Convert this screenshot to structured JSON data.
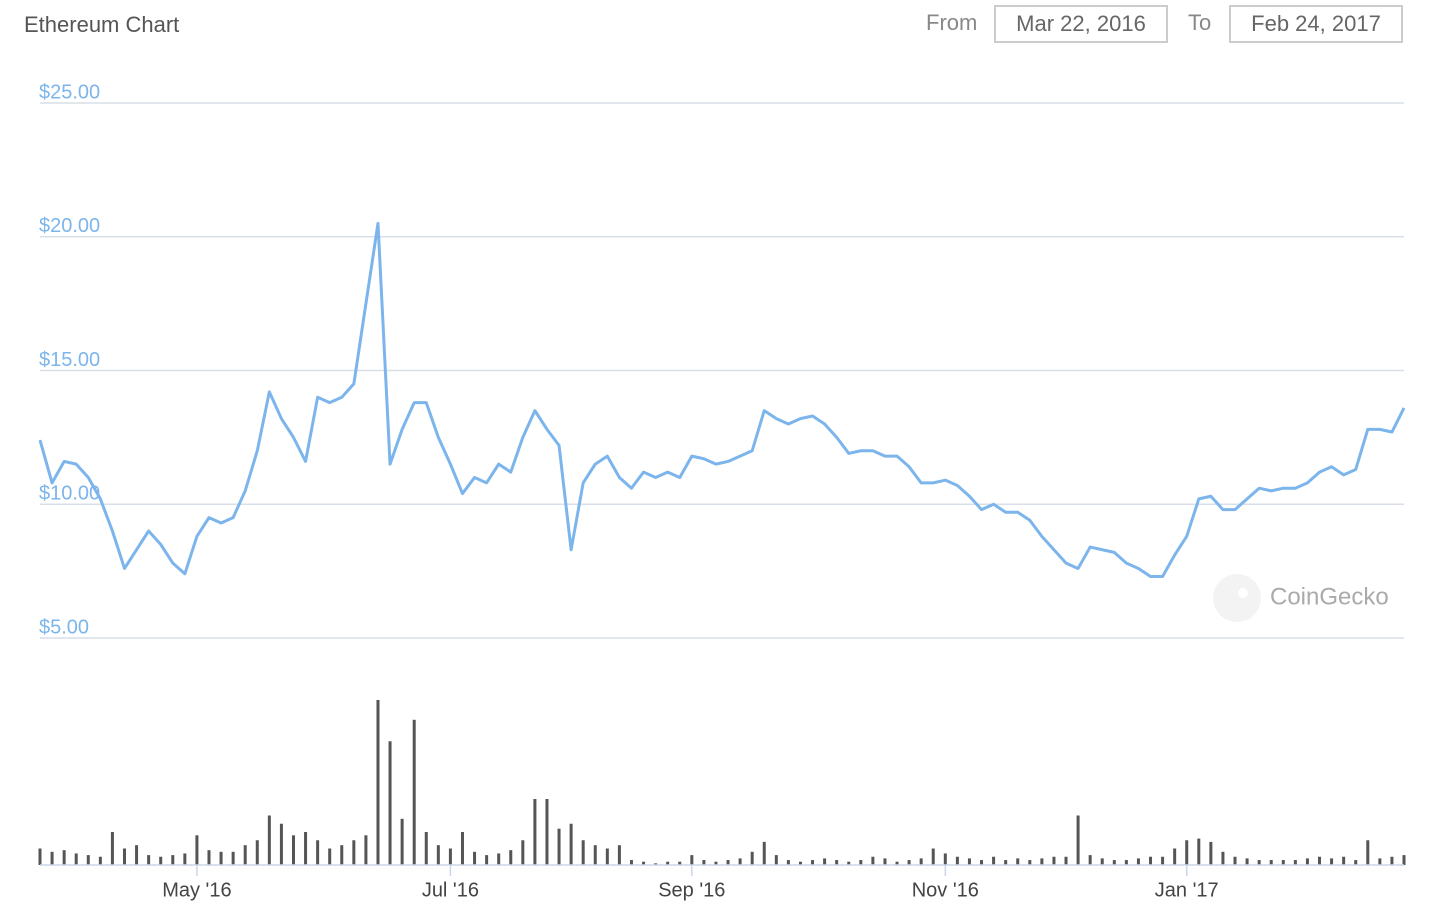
{
  "header": {
    "title": "Ethereum Chart",
    "from_label": "From",
    "from_date": "Mar 22, 2016",
    "to_label": "To",
    "to_date": "Feb 24, 2017"
  },
  "chart_data": [
    {
      "type": "line",
      "color": "#7cb5ec",
      "grid": true,
      "watermark": "CoinGecko",
      "ylim": [
        5,
        25
      ],
      "yticks": [
        {
          "value": 5,
          "label": "$5.00"
        },
        {
          "value": 10,
          "label": "$10.00"
        },
        {
          "value": 15,
          "label": "$15.00"
        },
        {
          "value": 20,
          "label": "$20.00"
        },
        {
          "value": 25,
          "label": "$25.00"
        }
      ],
      "categories": [
        null,
        null,
        null,
        null,
        null,
        null,
        null,
        null,
        null,
        null,
        null,
        null,
        null,
        "May '16",
        null,
        null,
        null,
        null,
        null,
        null,
        null,
        null,
        null,
        null,
        null,
        null,
        null,
        null,
        null,
        null,
        null,
        null,
        null,
        null,
        "Jul '16",
        null,
        null,
        null,
        null,
        null,
        null,
        null,
        null,
        null,
        null,
        null,
        null,
        null,
        null,
        null,
        null,
        null,
        null,
        null,
        "Sep '16",
        null,
        null,
        null,
        null,
        null,
        null,
        null,
        null,
        null,
        null,
        null,
        null,
        null,
        null,
        null,
        null,
        null,
        null,
        null,
        null,
        "Nov '16",
        null,
        null,
        null,
        null,
        null,
        null,
        null,
        null,
        null,
        null,
        null,
        null,
        null,
        null,
        null,
        null,
        null,
        null,
        null,
        "Jan '17",
        null,
        null,
        null,
        null,
        null,
        null,
        null,
        null,
        null,
        null,
        null,
        null,
        null,
        null,
        null,
        null,
        null,
        null
      ],
      "values": [
        12.4,
        10.8,
        11.6,
        11.5,
        11.0,
        10.2,
        9.0,
        7.6,
        8.3,
        9.0,
        8.5,
        7.8,
        7.4,
        8.8,
        9.5,
        9.3,
        9.5,
        10.5,
        12.0,
        14.2,
        13.2,
        12.5,
        11.6,
        14.0,
        13.8,
        14.0,
        14.5,
        17.5,
        20.5,
        11.5,
        12.8,
        13.8,
        13.8,
        12.5,
        11.5,
        10.4,
        11.0,
        10.8,
        11.5,
        11.2,
        12.5,
        13.5,
        12.8,
        12.2,
        8.3,
        10.8,
        11.5,
        11.8,
        11.0,
        10.6,
        11.2,
        11.0,
        11.2,
        11.0,
        11.8,
        11.7,
        11.5,
        11.6,
        11.8,
        12.0,
        13.5,
        13.2,
        13.0,
        13.2,
        13.3,
        13.0,
        12.5,
        11.9,
        12.0,
        12.0,
        11.8,
        11.8,
        11.4,
        10.8,
        10.8,
        10.9,
        10.7,
        10.3,
        9.8,
        10.0,
        9.7,
        9.7,
        9.4,
        8.8,
        8.3,
        7.8,
        7.6,
        8.4,
        8.3,
        8.2,
        7.8,
        7.6,
        7.3,
        7.3,
        8.1,
        8.8,
        10.2,
        10.3,
        9.8,
        9.8,
        10.2,
        10.6,
        10.5,
        10.6,
        10.6,
        10.8,
        11.2,
        11.4,
        11.1,
        11.3,
        12.8,
        12.8,
        12.7,
        13.6
      ]
    },
    {
      "type": "bar",
      "color": "#555555",
      "ylim": [
        0,
        100
      ],
      "values": [
        10,
        8,
        9,
        7,
        6,
        5,
        20,
        10,
        12,
        6,
        5,
        6,
        7,
        18,
        9,
        8,
        8,
        12,
        15,
        30,
        25,
        18,
        20,
        15,
        10,
        12,
        15,
        18,
        100,
        75,
        28,
        88,
        20,
        12,
        10,
        20,
        8,
        6,
        7,
        9,
        15,
        40,
        40,
        22,
        25,
        15,
        12,
        10,
        12,
        3,
        2,
        1,
        2,
        2,
        6,
        3,
        2,
        3,
        4,
        8,
        14,
        6,
        3,
        2,
        3,
        4,
        3,
        2,
        3,
        5,
        4,
        2,
        3,
        4,
        10,
        7,
        5,
        4,
        3,
        5,
        3,
        4,
        3,
        4,
        5,
        5,
        30,
        6,
        4,
        3,
        3,
        4,
        5,
        5,
        10,
        15,
        16,
        14,
        8,
        5,
        4,
        3,
        3,
        3,
        3,
        4,
        5,
        4,
        5,
        3,
        15,
        4,
        5,
        6
      ]
    }
  ]
}
